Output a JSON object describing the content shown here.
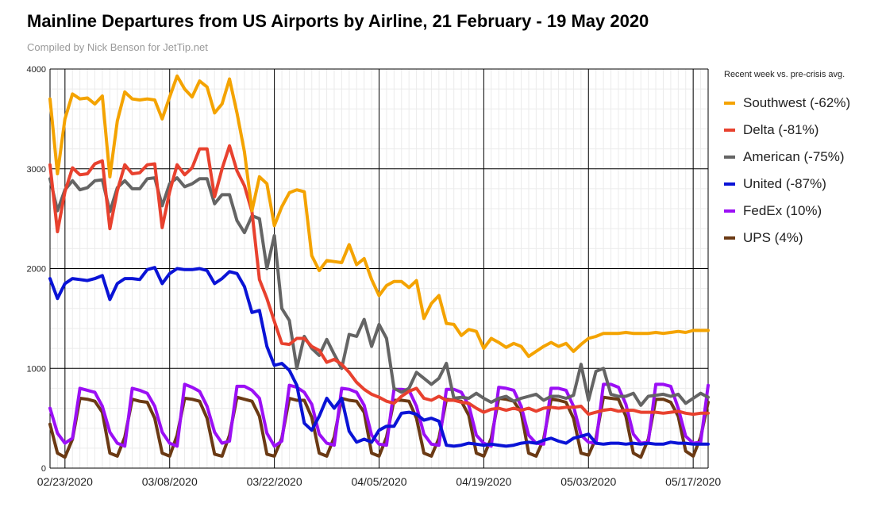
{
  "title": "Mainline Departures from US Airports by Airline, 21 February - 19 May 2020",
  "subtitle": "Compiled by Nick Benson for JetTip.net",
  "legend": {
    "title": "Recent week vs. pre-crisis avg."
  },
  "chart_data": {
    "type": "line",
    "title": "Mainline Departures from US Airports by Airline, 21 February - 19 May 2020",
    "subtitle": "Compiled by Nick Benson for JetTip.net",
    "xlabel": "",
    "ylabel": "",
    "start_date": "2020-02-21",
    "x_range": [
      "2020-02-21",
      "2020-05-19"
    ],
    "ylim": [
      0,
      4000
    ],
    "y_ticks": [
      0,
      1000,
      2000,
      3000,
      4000
    ],
    "y_tick_labels": [
      "0",
      "1000",
      "2000",
      "3000",
      "4000"
    ],
    "x_ticks": [
      "02/23/2020",
      "03/08/2020",
      "03/22/2020",
      "04/05/2020",
      "04/19/2020",
      "05/03/2020",
      "05/17/2020"
    ],
    "grid": true,
    "legend_position": "right",
    "series": [
      {
        "name": "Southwest (-62%)",
        "color": "#f4a300",
        "values": [
          3700,
          2950,
          3500,
          3750,
          3700,
          3710,
          3650,
          3730,
          2920,
          3480,
          3770,
          3700,
          3690,
          3700,
          3690,
          3500,
          3720,
          3930,
          3800,
          3720,
          3880,
          3820,
          3560,
          3650,
          3900,
          3560,
          3170,
          2580,
          2920,
          2850,
          2430,
          2620,
          2760,
          2790,
          2770,
          2130,
          1980,
          2080,
          2070,
          2060,
          2240,
          2040,
          2100,
          1890,
          1730,
          1830,
          1870,
          1870,
          1810,
          1880,
          1500,
          1650,
          1730,
          1450,
          1440,
          1330,
          1390,
          1370,
          1200,
          1300,
          1260,
          1210,
          1250,
          1220,
          1120,
          1170,
          1220,
          1260,
          1220,
          1250,
          1170,
          1240,
          1300,
          1320,
          1350,
          1350,
          1350,
          1360,
          1350,
          1350,
          1350,
          1360,
          1350,
          1360,
          1370,
          1360,
          1380,
          1380,
          1380
        ]
      },
      {
        "name": "Delta (-81%)",
        "color": "#e8412e",
        "values": [
          3040,
          2370,
          2770,
          3010,
          2940,
          2950,
          3050,
          3080,
          2400,
          2780,
          3040,
          2950,
          2960,
          3040,
          3050,
          2410,
          2770,
          3040,
          2940,
          3010,
          3200,
          3200,
          2720,
          3000,
          3230,
          2980,
          2830,
          2570,
          1890,
          1700,
          1470,
          1250,
          1240,
          1300,
          1300,
          1220,
          1180,
          1060,
          1090,
          1040,
          960,
          860,
          790,
          740,
          710,
          670,
          650,
          720,
          770,
          800,
          700,
          680,
          720,
          680,
          680,
          660,
          650,
          600,
          560,
          590,
          600,
          580,
          600,
          580,
          600,
          570,
          600,
          610,
          600,
          610,
          610,
          620,
          540,
          560,
          580,
          590,
          570,
          580,
          580,
          560,
          560,
          560,
          550,
          560,
          570,
          550,
          540,
          550,
          550
        ]
      },
      {
        "name": "American (-75%)",
        "color": "#646464",
        "values": [
          2900,
          2580,
          2790,
          2880,
          2790,
          2810,
          2880,
          2890,
          2570,
          2810,
          2880,
          2800,
          2800,
          2900,
          2910,
          2630,
          2850,
          2910,
          2820,
          2850,
          2900,
          2900,
          2650,
          2740,
          2740,
          2480,
          2360,
          2530,
          2500,
          2000,
          2330,
          1600,
          1480,
          1000,
          1320,
          1200,
          1130,
          1290,
          1140,
          1000,
          1340,
          1320,
          1490,
          1220,
          1440,
          1300,
          800,
          760,
          800,
          960,
          900,
          840,
          900,
          1050,
          700,
          710,
          700,
          750,
          700,
          660,
          700,
          720,
          670,
          700,
          720,
          740,
          680,
          720,
          720,
          700,
          730,
          1040,
          680,
          970,
          1000,
          740,
          720,
          720,
          750,
          630,
          720,
          730,
          740,
          720,
          740,
          650,
          700,
          750,
          710
        ]
      },
      {
        "name": "United (-87%)",
        "color": "#0a13d6",
        "values": [
          1900,
          1700,
          1850,
          1900,
          1890,
          1880,
          1900,
          1930,
          1690,
          1850,
          1900,
          1900,
          1890,
          1990,
          2010,
          1850,
          1950,
          2000,
          1990,
          1990,
          2000,
          1980,
          1850,
          1900,
          1970,
          1950,
          1820,
          1560,
          1580,
          1220,
          1030,
          1050,
          980,
          830,
          450,
          380,
          520,
          700,
          600,
          700,
          370,
          260,
          290,
          260,
          380,
          420,
          420,
          550,
          560,
          540,
          480,
          500,
          470,
          230,
          220,
          230,
          250,
          240,
          230,
          240,
          230,
          220,
          230,
          250,
          260,
          250,
          280,
          300,
          270,
          250,
          300,
          320,
          340,
          250,
          240,
          250,
          250,
          240,
          250,
          240,
          250,
          240,
          240,
          260,
          250,
          250,
          240,
          240,
          240
        ]
      },
      {
        "name": "FedEx (10%)",
        "color": "#9b0ff5",
        "values": [
          600,
          350,
          250,
          300,
          800,
          780,
          760,
          620,
          360,
          250,
          220,
          800,
          780,
          750,
          620,
          360,
          250,
          220,
          840,
          810,
          770,
          620,
          360,
          250,
          270,
          820,
          820,
          780,
          700,
          350,
          220,
          270,
          830,
          810,
          760,
          640,
          340,
          250,
          230,
          800,
          790,
          760,
          630,
          330,
          240,
          230,
          790,
          790,
          780,
          620,
          340,
          240,
          230,
          790,
          790,
          760,
          630,
          330,
          250,
          220,
          810,
          800,
          780,
          620,
          330,
          250,
          240,
          800,
          800,
          780,
          620,
          330,
          260,
          250,
          840,
          840,
          810,
          640,
          340,
          250,
          260,
          840,
          840,
          820,
          600,
          320,
          250,
          260,
          830
        ]
      },
      {
        "name": "UPS (4%)",
        "color": "#6b3a14",
        "values": [
          440,
          150,
          110,
          290,
          700,
          690,
          670,
          560,
          150,
          120,
          310,
          690,
          670,
          660,
          500,
          150,
          120,
          330,
          700,
          690,
          670,
          500,
          140,
          120,
          330,
          710,
          690,
          670,
          520,
          140,
          120,
          300,
          700,
          680,
          680,
          510,
          150,
          120,
          310,
          700,
          680,
          670,
          560,
          150,
          120,
          310,
          680,
          680,
          670,
          500,
          150,
          120,
          300,
          690,
          680,
          670,
          530,
          150,
          120,
          300,
          700,
          690,
          670,
          560,
          150,
          120,
          290,
          690,
          680,
          660,
          500,
          150,
          130,
          300,
          710,
          700,
          690,
          520,
          150,
          110,
          290,
          690,
          690,
          660,
          520,
          170,
          120,
          310,
          660
        ]
      }
    ]
  }
}
